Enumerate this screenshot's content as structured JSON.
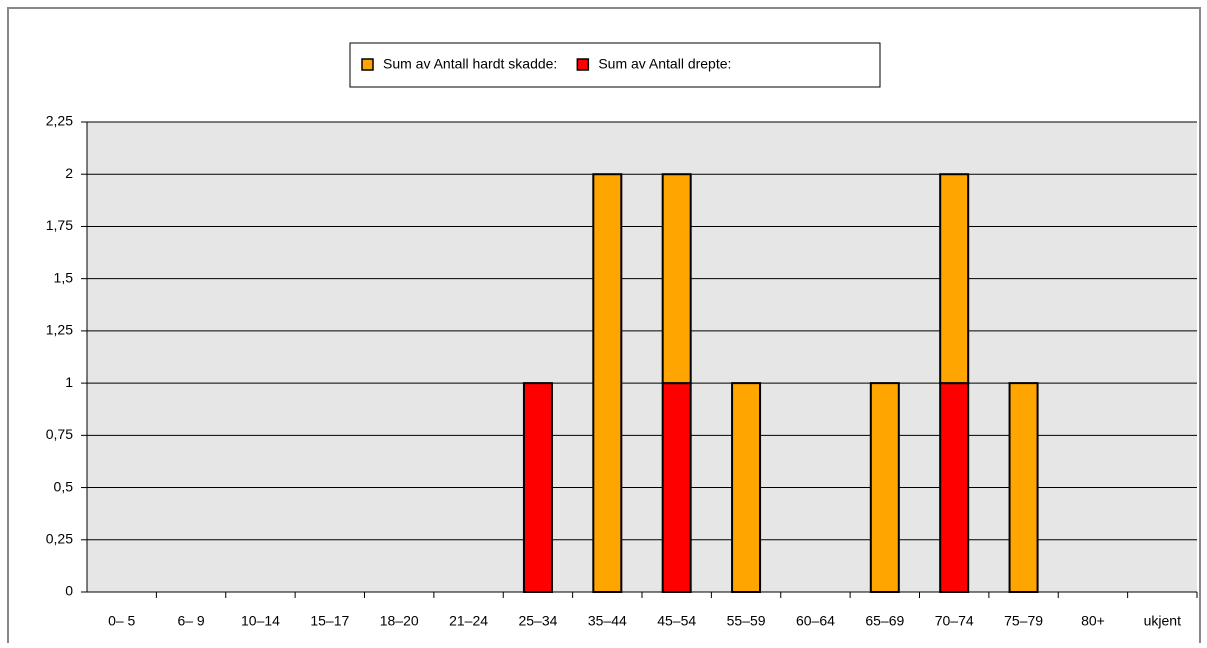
{
  "chart_data": {
    "type": "stacked-bar",
    "categories": [
      "0– 5",
      "6– 9",
      "10–14",
      "15–17",
      "18–20",
      "21–24",
      "25–34",
      "35–44",
      "45–54",
      "55–59",
      "60–64",
      "65–69",
      "70–74",
      "75–79",
      "80+",
      "ukjent"
    ],
    "series": [
      {
        "name": "Sum av Antall hardt skadde:",
        "color": "#ffa500",
        "values": [
          0,
          0,
          0,
          0,
          0,
          0,
          0,
          2,
          1,
          1,
          0,
          1,
          1,
          1,
          0,
          0
        ]
      },
      {
        "name": "Sum av Antall drepte:",
        "color": "#ff0000",
        "values": [
          0,
          0,
          0,
          0,
          0,
          0,
          1,
          0,
          1,
          0,
          0,
          0,
          1,
          0,
          0,
          0
        ]
      }
    ],
    "ylim": [
      0,
      2.25
    ],
    "yticks": [
      0,
      {
        "value": 0.25,
        "label": "0,25"
      },
      {
        "value": 0.5,
        "label": "0,5"
      },
      {
        "value": 0.75,
        "label": "0,75"
      },
      1,
      {
        "value": 1.25,
        "label": "1,25"
      },
      {
        "value": 1.5,
        "label": "1,5"
      },
      {
        "value": 1.75,
        "label": "1,75"
      },
      2,
      {
        "value": 2.25,
        "label": "2,25"
      }
    ],
    "grid": true,
    "legend": "top"
  }
}
